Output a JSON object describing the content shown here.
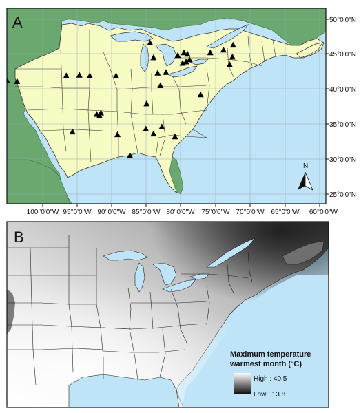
{
  "panel_a": {
    "label": "A",
    "lat_labels": [
      "50°0'0\"N",
      "45°0'0\"N",
      "40°0'0\"N",
      "35°0'0\"N",
      "30°0'0\"N",
      "25°0'0\"N"
    ],
    "lon_labels": [
      "100°0'0\"W",
      "95°0'0\"W",
      "90°0'0\"W",
      "85°0'0\"W",
      "80°0'0\"W",
      "75°0'0\"W",
      "70°0'0\"W",
      "65°0'0\"W",
      "60°0'0\"W"
    ],
    "north_arrow_label": "N",
    "colors": {
      "ocean": "#bfe3f7",
      "outside_region": "#6aa870",
      "study_region": "#f6fbc4",
      "site_marker": "#000000"
    },
    "sites": [
      {
        "lon": -105.2,
        "lat": 41.3
      },
      {
        "lon": -103.7,
        "lat": 41.1
      },
      {
        "lon": -96.6,
        "lat": 41.9
      },
      {
        "lon": -94.7,
        "lat": 42.0
      },
      {
        "lon": -93.2,
        "lat": 41.9
      },
      {
        "lon": -89.4,
        "lat": 41.9
      },
      {
        "lon": -84.5,
        "lat": 46.6
      },
      {
        "lon": -84.0,
        "lat": 44.5
      },
      {
        "lon": -83.4,
        "lat": 42.3
      },
      {
        "lon": -82.2,
        "lat": 42.4
      },
      {
        "lon": -83.0,
        "lat": 40.5
      },
      {
        "lon": -80.5,
        "lat": 44.8
      },
      {
        "lon": -79.6,
        "lat": 45.2
      },
      {
        "lon": -79.1,
        "lat": 45.0
      },
      {
        "lon": -78.8,
        "lat": 44.2
      },
      {
        "lon": -79.8,
        "lat": 43.7
      },
      {
        "lon": -79.3,
        "lat": 43.9
      },
      {
        "lon": -77.2,
        "lat": 39.2
      },
      {
        "lon": -75.8,
        "lat": 45.2
      },
      {
        "lon": -73.9,
        "lat": 45.6
      },
      {
        "lon": -72.5,
        "lat": 46.3
      },
      {
        "lon": -72.6,
        "lat": 44.6
      },
      {
        "lon": -73.0,
        "lat": 43.5
      },
      {
        "lon": -92.2,
        "lat": 36.4
      },
      {
        "lon": -91.8,
        "lat": 36.2
      },
      {
        "lon": -91.6,
        "lat": 36.6
      },
      {
        "lon": -85.0,
        "lat": 37.9
      },
      {
        "lon": -89.2,
        "lat": 33.5
      },
      {
        "lon": -85.1,
        "lat": 34.3
      },
      {
        "lon": -84.0,
        "lat": 33.6
      },
      {
        "lon": -82.8,
        "lat": 34.6
      },
      {
        "lon": -80.9,
        "lat": 33.2
      },
      {
        "lon": -95.7,
        "lat": 33.9
      },
      {
        "lon": -87.4,
        "lat": 30.5
      }
    ]
  },
  "panel_b": {
    "label": "B",
    "legend_title_line1": "Maximum temperature",
    "legend_title_line2": "warmest month (°C)",
    "legend_high": "High : 40.5",
    "legend_low": "Low : 13.8",
    "colors": {
      "ocean": "#bfe3f7",
      "warm": "#f2f2f2",
      "cool": "#141414"
    }
  }
}
